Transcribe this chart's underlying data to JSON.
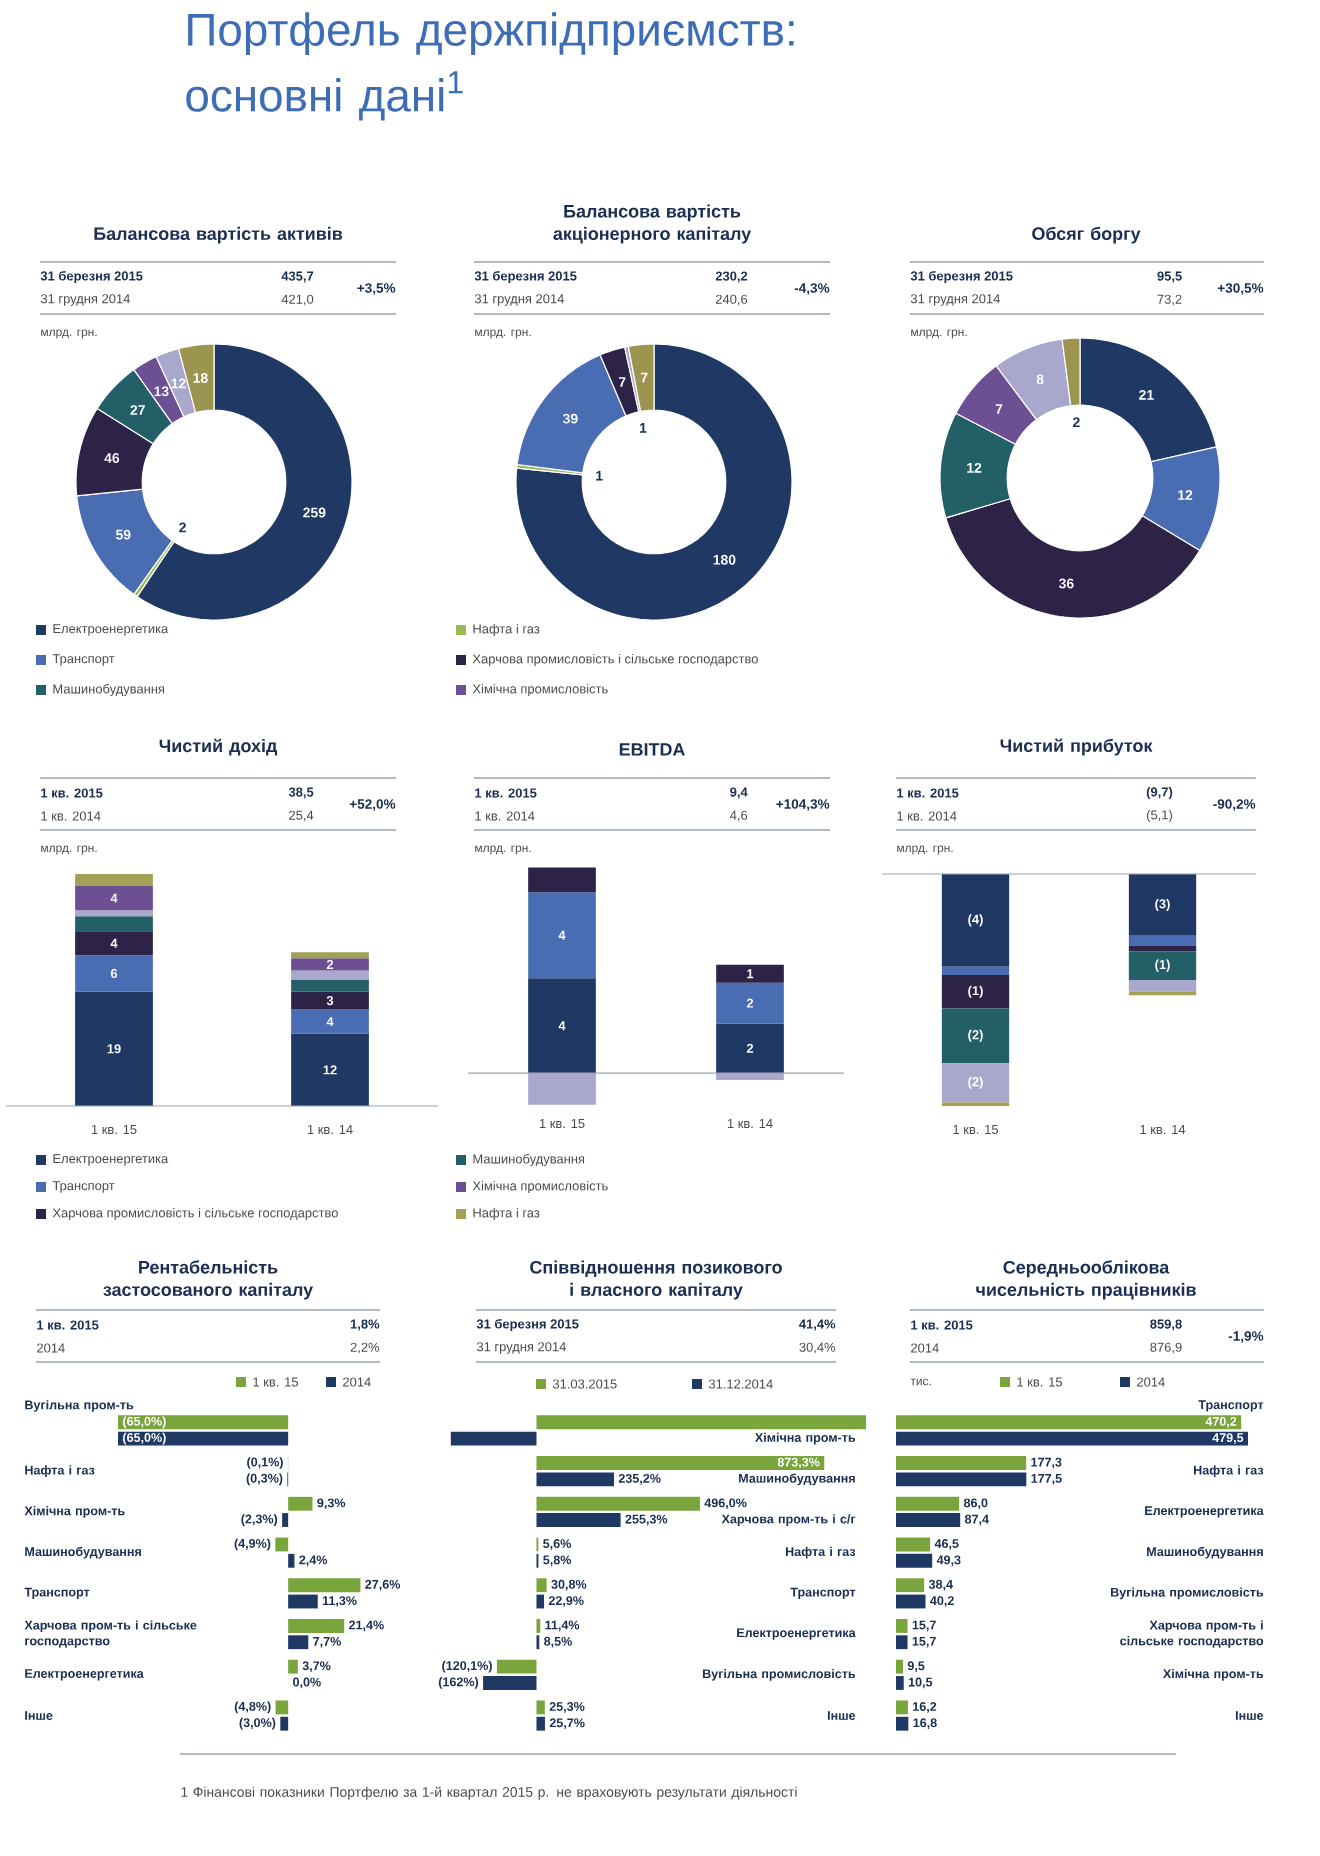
{
  "chart_data": [
    {
      "type": "other",
      "title": "Портфель держпідприємств: основні дані$^{1}$",
      "annotations": [
        "1 Фінансові показники Портфелю за 1-й квартал 2015 р. не враховують результати діяльності"
      ]
    },
    {
      "type": "donut",
      "title": "Балансова вартість активів",
      "annotations": [
        "31 березня 2015",
        "435,7",
        "31 грудня 2014",
        "421,0",
        "+3,5%",
        "млрд. грн."
      ],
      "categories": [
        "Електроенергетика",
        "Нафта і газ",
        "Транспорт",
        "Харчова промисловість і сільське господарство",
        "Машинобудування",
        "Хімічна промисловість",
        null,
        null
      ],
      "values": [
        259,
        2,
        59,
        46,
        27,
        13,
        12,
        18
      ],
      "colors": [
        "#1f3864",
        "#9bbb59",
        "#4a6cb3",
        "#2c2347",
        "#235f66",
        "#6d4f94",
        "#a9a7cb",
        "#9c9550"
      ],
      "data_labels": true,
      "legend": "bottom"
    },
    {
      "type": "donut",
      "title": "Балансова вартість акціонерного капіталу",
      "annotations": [
        "31 березня 2015",
        "230,2",
        "31 грудня 2014",
        "240,6",
        "-4,3%",
        "млрд. грн."
      ],
      "categories": [
        null,
        null,
        null,
        null,
        null,
        null
      ],
      "values": [
        180,
        1,
        39,
        7,
        1,
        7
      ],
      "colors": [
        "#1f3864",
        "#9bbb59",
        "#4a6cb3",
        "#2c2347",
        "#a9a7cb",
        "#9c9550"
      ],
      "data_labels": true
    },
    {
      "type": "donut",
      "title": "Обсяг боргу",
      "annotations": [
        "31 березня 2015",
        "95,5",
        "31 грудня 2014",
        "73,2",
        "+30,5%",
        "млрд. грн."
      ],
      "categories": [
        null,
        null,
        null,
        null,
        null,
        null,
        null
      ],
      "values": [
        21,
        12,
        36,
        12,
        7,
        8,
        2
      ],
      "colors": [
        "#1f3864",
        "#4a6cb3",
        "#2c2347",
        "#235f66",
        "#6d4f94",
        "#a9a7cb",
        "#9c9550"
      ],
      "data_labels": true
    },
    {
      "type": "bar",
      "stacked": true,
      "title": "Чистий дохід",
      "annotations": [
        "1 кв. 2015",
        "38,5",
        "1 кв. 2014",
        "25,4",
        "+52,0%",
        "млрд. грн."
      ],
      "categories": [
        "1 кв. 15",
        "1 кв. 14"
      ],
      "legend": "bottom",
      "series": [
        {
          "name": "Електроенергетика",
          "color": "#1f3864",
          "values": [
            19,
            12
          ],
          "value_labels": [
            "19",
            "12"
          ]
        },
        {
          "name": "Транспорт",
          "color": "#4a6cb3",
          "values": [
            6,
            4
          ],
          "value_labels": [
            "6",
            "4"
          ]
        },
        {
          "name": "Харчова промисловість і сільське господарство",
          "color": "#2c2347",
          "values": [
            4,
            3
          ],
          "value_labels": [
            "4",
            "3"
          ]
        },
        {
          "name": "Машинобудування",
          "color": "#235f66",
          "values": [
            2.5,
            2
          ]
        },
        {
          "color": "#a9a7cb",
          "values": [
            1,
            1.5
          ]
        },
        {
          "name": "Хімічна промисловість",
          "color": "#6d4f94",
          "values": [
            4,
            2
          ],
          "value_labels": [
            "4",
            "2"
          ]
        },
        {
          "name": "Нафта і газ",
          "color": "#a3a156",
          "values": [
            2,
            1
          ]
        }
      ]
    },
    {
      "type": "bar",
      "stacked": true,
      "title": "EBITDA",
      "annotations": [
        "1 кв. 2015",
        "9,4",
        "1 кв. 2014",
        "4,6",
        "+104,3%",
        "млрд. грн."
      ],
      "categories": [
        "1 кв. 15",
        "1 кв. 14"
      ],
      "ylim": [
        -1.45,
        9.25
      ],
      "series": [
        {
          "color": "#1f3864",
          "values": [
            4.2,
            2.2
          ],
          "value_labels": [
            "4",
            "2"
          ]
        },
        {
          "color": "#4a6cb3",
          "values": [
            3.8,
            1.8
          ],
          "value_labels": [
            "4",
            "2"
          ]
        },
        {
          "color": "#2c2347",
          "values": [
            1.1,
            0.8
          ],
          "value_labels": [
            null,
            "1"
          ]
        },
        {
          "color": "#a9a7cb",
          "values": [
            -1.4,
            -0.3
          ]
        }
      ]
    },
    {
      "type": "bar",
      "stacked": true,
      "title": "Чистий прибуток",
      "annotations": [
        "1 кв. 2015",
        "(9,7)",
        "1 кв. 2014",
        "(5,1)",
        "-90,2%",
        "млрд. грн."
      ],
      "categories": [
        "1 кв. 15",
        "1 кв. 14"
      ],
      "series": [
        {
          "color": "#1f3864",
          "values": [
            -3.9,
            -2.6
          ],
          "value_labels": [
            "(4)",
            "(3)"
          ]
        },
        {
          "color": "#4a6cb3",
          "values": [
            -0.35,
            -0.4
          ]
        },
        {
          "color": "#2c2347",
          "values": [
            -1.4,
            -0.25
          ],
          "value_labels": [
            "(1)",
            null
          ]
        },
        {
          "color": "#235f66",
          "values": [
            -2.3,
            -1.2
          ],
          "value_labels": [
            "(2)",
            "(1)"
          ]
        },
        {
          "color": "#a9a7cb",
          "values": [
            -1.65,
            -0.5
          ],
          "value_labels": [
            "(2)",
            null
          ]
        },
        {
          "color": "#a3a156",
          "values": [
            -0.15,
            -0.15
          ]
        }
      ]
    },
    {
      "type": "bar",
      "orientation": "horizontal",
      "title": "Рентабельність застосованого капіталу",
      "annotations": [
        "1 кв. 2015",
        "1,8%",
        "2014",
        "2,2%"
      ],
      "categories": [
        "Вугільна пром-ть",
        "Нафта і газ",
        "Хімічна пром-ть",
        "Машинобудування",
        "Транспорт",
        "Харчова пром-ть і сільське господарство",
        "Електроенергетика",
        "Інше"
      ],
      "legend": "top",
      "series": [
        {
          "name": "1 кв. 15",
          "color": "#7aa43c",
          "values": [
            -65.0,
            -0.1,
            9.3,
            -4.9,
            27.6,
            21.4,
            3.7,
            -4.8
          ],
          "value_labels": [
            "(65,0%)",
            "(0,1%)",
            "9,3%",
            "(4,9%)",
            "27,6%",
            "21,4%",
            "3,7%",
            "(4,8%)"
          ]
        },
        {
          "name": "2014",
          "color": "#1f3864",
          "values": [
            -65.0,
            -0.3,
            -2.3,
            2.4,
            11.3,
            7.7,
            0.0,
            -3.0
          ],
          "value_labels": [
            "(65,0%)",
            "(0,3%)",
            "(2,3%)",
            "2,4%",
            "11,3%",
            "7,7%",
            "0,0%",
            "(3,0%)"
          ]
        }
      ]
    },
    {
      "type": "bar",
      "orientation": "horizontal",
      "title": "Співвідношення позикового і власного капіталу",
      "annotations": [
        "31 березня 2015",
        "41,4%",
        "31 грудня 2014",
        "30,4%"
      ],
      "categories": [
        "Хімічна пром-ть",
        "Машинобудування",
        "Харчова пром-ть і с/г",
        "Нафта і газ",
        "Транспорт",
        "Електроенергетика",
        "Вугільна промисловість",
        "Інше"
      ],
      "legend": "top",
      "series": [
        {
          "name": "31.03.2015",
          "color": "#7aa43c",
          "values": [
            1000,
            873.3,
            496.0,
            5.6,
            30.8,
            11.4,
            -120.1,
            25.3
          ],
          "value_labels": [
            null,
            "873,3%",
            "496,0%",
            "5,6%",
            "30,8%",
            "11,4%",
            "(120,1%)",
            "25,3%"
          ]
        },
        {
          "name": "31.12.2014",
          "color": "#1f3864",
          "values": [
            -260,
            235.2,
            255.3,
            5.8,
            22.9,
            8.5,
            -162,
            25.7
          ],
          "value_labels": [
            null,
            "235,2%",
            "255,3%",
            "5,8%",
            "22,9%",
            "8,5%",
            "(162%)",
            "25,7%"
          ]
        }
      ]
    },
    {
      "type": "bar",
      "orientation": "horizontal",
      "title": "Середньооблікова чисельність працівників",
      "annotations": [
        "1 кв. 2015",
        "859,8",
        "2014",
        "876,9",
        "-1,9%",
        "тис."
      ],
      "categories": [
        "Транспорт",
        "Нафта і газ",
        "Електроенергетика",
        "Машинобудування",
        "Вугільна промисловість",
        "Харчова пром-ть і сільське господарство",
        "Хімічна пром-ть",
        "Інше"
      ],
      "legend": "top",
      "series": [
        {
          "name": "1 кв. 15",
          "color": "#7aa43c",
          "values": [
            470.2,
            177.3,
            86.0,
            46.5,
            38.4,
            15.7,
            9.5,
            16.2
          ],
          "value_labels": [
            "470,2",
            "177,3",
            "86,0",
            "46,5",
            "38,4",
            "15,7",
            "9,5",
            "16,2"
          ]
        },
        {
          "name": "2014",
          "color": "#1f3864",
          "values": [
            479.5,
            177.5,
            87.4,
            49.3,
            40.2,
            15.7,
            10.5,
            16.8
          ],
          "value_labels": [
            "479,5",
            "177,5",
            "87,4",
            "49,3",
            "40,2",
            "15,7",
            "10,5",
            "16,8"
          ]
        }
      ]
    }
  ]
}
